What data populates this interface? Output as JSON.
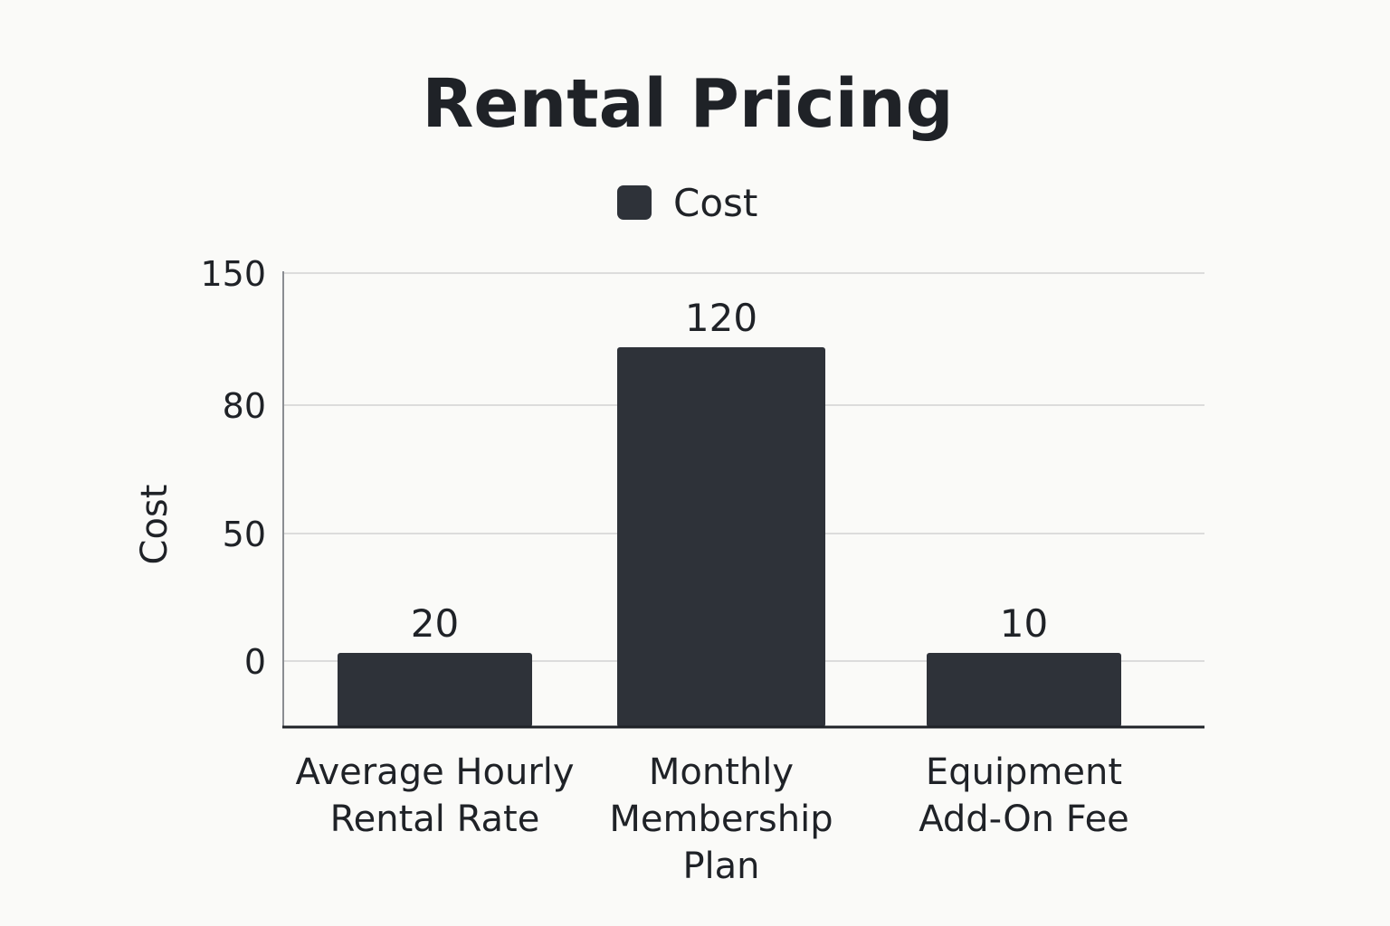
{
  "chart_data": {
    "type": "bar",
    "title": "Rental Pricing",
    "legend": {
      "position": "top-center",
      "entries": [
        "Cost"
      ]
    },
    "ylabel": "Cost",
    "xlabel": "",
    "yticks": [
      "150",
      "80",
      "50",
      "0"
    ],
    "grid": true,
    "categories": [
      [
        "Average Hourly",
        "Rental Rate"
      ],
      [
        "Monthly",
        "Membership",
        "Plan"
      ],
      [
        "Equipment",
        "Add-On Fee"
      ]
    ],
    "series": [
      {
        "name": "Cost",
        "values": [
          20,
          120,
          10
        ],
        "color": "#2e3239"
      }
    ],
    "data_labels": [
      "20",
      "120",
      "10"
    ]
  }
}
